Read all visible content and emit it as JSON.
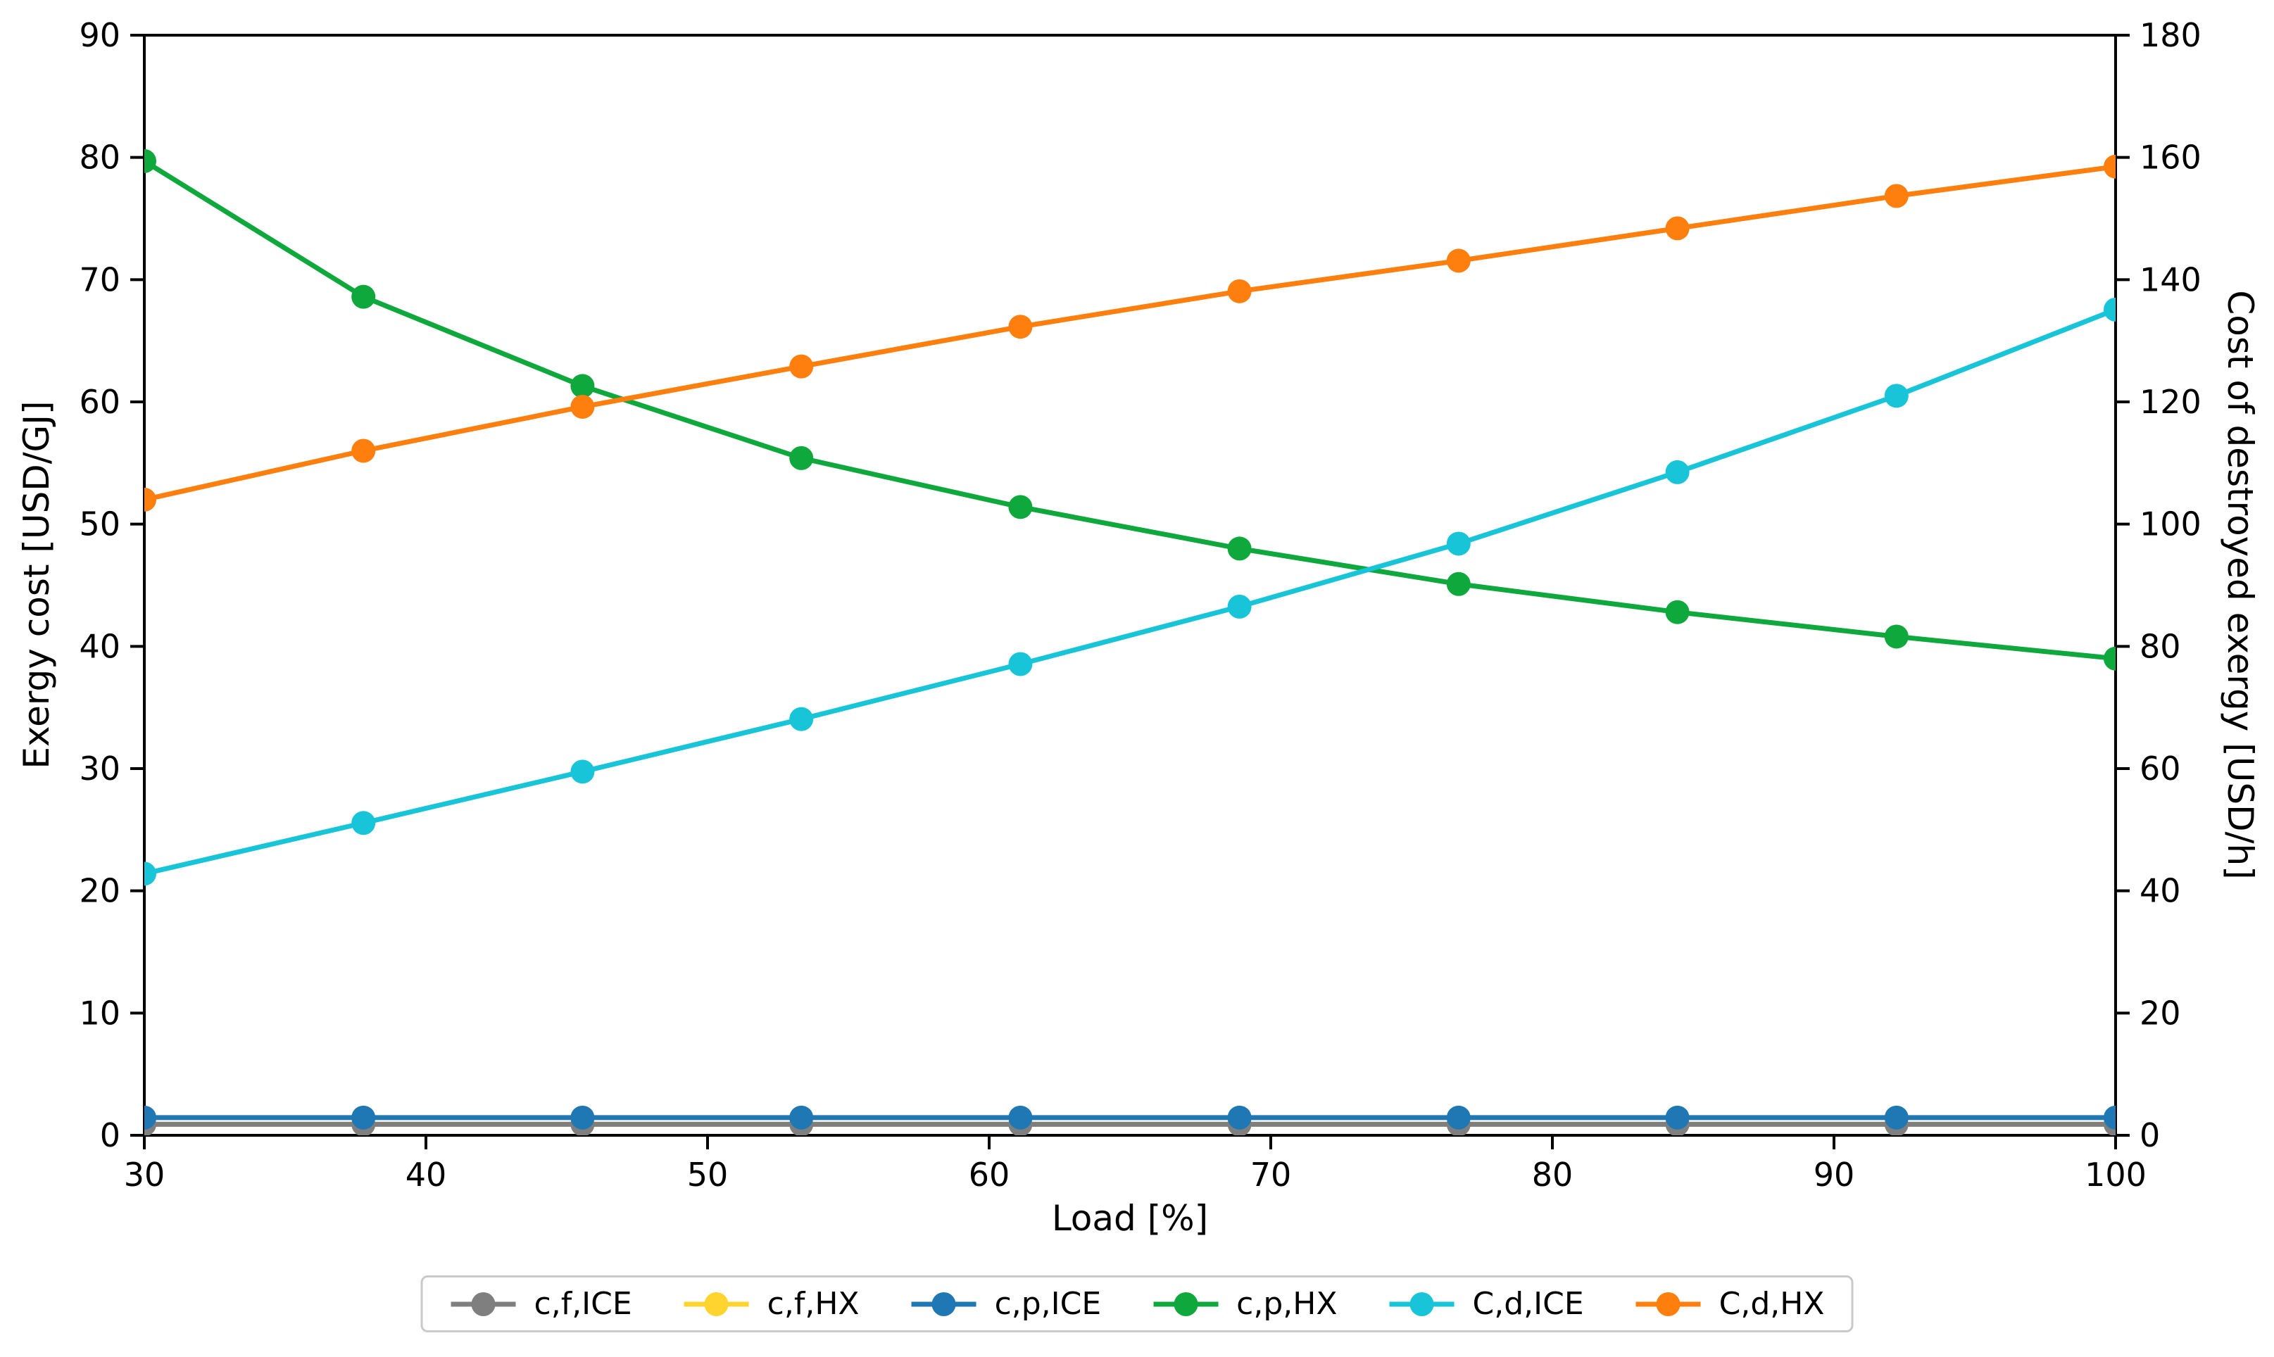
{
  "chart_data": {
    "type": "line",
    "title": "",
    "xlabel": "Load [%]",
    "ylabel_left": "Exergy cost [USD/GJ]",
    "ylabel_right": "Cost of destroyed exergy [USD/h]",
    "grid": false,
    "legend_position": "bottom-center",
    "x": [
      30,
      37.78,
      45.56,
      53.33,
      61.11,
      68.89,
      76.67,
      84.44,
      92.22,
      100
    ],
    "xlim": [
      30,
      100
    ],
    "xticks": [
      "30",
      "40",
      "50",
      "60",
      "70",
      "80",
      "90",
      "100"
    ],
    "xtick_values": [
      30,
      40,
      50,
      60,
      70,
      80,
      90,
      100
    ],
    "ylim_left": [
      0,
      90
    ],
    "yticks_left": [
      "0",
      "10",
      "20",
      "30",
      "40",
      "50",
      "60",
      "70",
      "80",
      "90"
    ],
    "ytick_values_left": [
      0,
      10,
      20,
      30,
      40,
      50,
      60,
      70,
      80,
      90
    ],
    "ylim_right": [
      0,
      180
    ],
    "yticks_right": [
      "0",
      "20",
      "40",
      "60",
      "80",
      "100",
      "120",
      "140",
      "160",
      "180"
    ],
    "ytick_values_right": [
      0,
      20,
      40,
      60,
      80,
      100,
      120,
      140,
      160,
      180
    ],
    "series": [
      {
        "name": "c,f,ICE",
        "axis": "left",
        "color": "#7f7f7f",
        "values": [
          0.9,
          0.9,
          0.9,
          0.9,
          0.9,
          0.9,
          0.9,
          0.9,
          0.9,
          0.9
        ]
      },
      {
        "name": "c,f,HX",
        "axis": "left",
        "color": "#ffd42e",
        "values": [
          0.9,
          0.9,
          0.9,
          0.9,
          0.9,
          0.9,
          0.9,
          0.9,
          0.9,
          0.9
        ]
      },
      {
        "name": "c,p,ICE",
        "axis": "left",
        "color": "#1f77b4",
        "values": [
          1.45,
          1.45,
          1.45,
          1.45,
          1.45,
          1.45,
          1.45,
          1.45,
          1.45,
          1.45
        ]
      },
      {
        "name": "c,p,HX",
        "axis": "left",
        "color": "#0fa83c",
        "values": [
          79.7,
          68.6,
          61.3,
          55.4,
          51.4,
          48.0,
          45.1,
          42.8,
          40.8,
          39.0
        ]
      },
      {
        "name": "C,d,ICE",
        "axis": "right",
        "color": "#18c5d8",
        "values": [
          42.8,
          51.1,
          59.5,
          68.1,
          77.1,
          86.5,
          96.8,
          108.5,
          121.0,
          135.1
        ]
      },
      {
        "name": "C,d,HX",
        "axis": "right",
        "color": "#ff7f0e",
        "values": [
          104.0,
          112.0,
          119.2,
          125.8,
          132.3,
          138.1,
          143.1,
          148.4,
          153.7,
          158.5
        ]
      }
    ],
    "axis_color": "#000000"
  }
}
